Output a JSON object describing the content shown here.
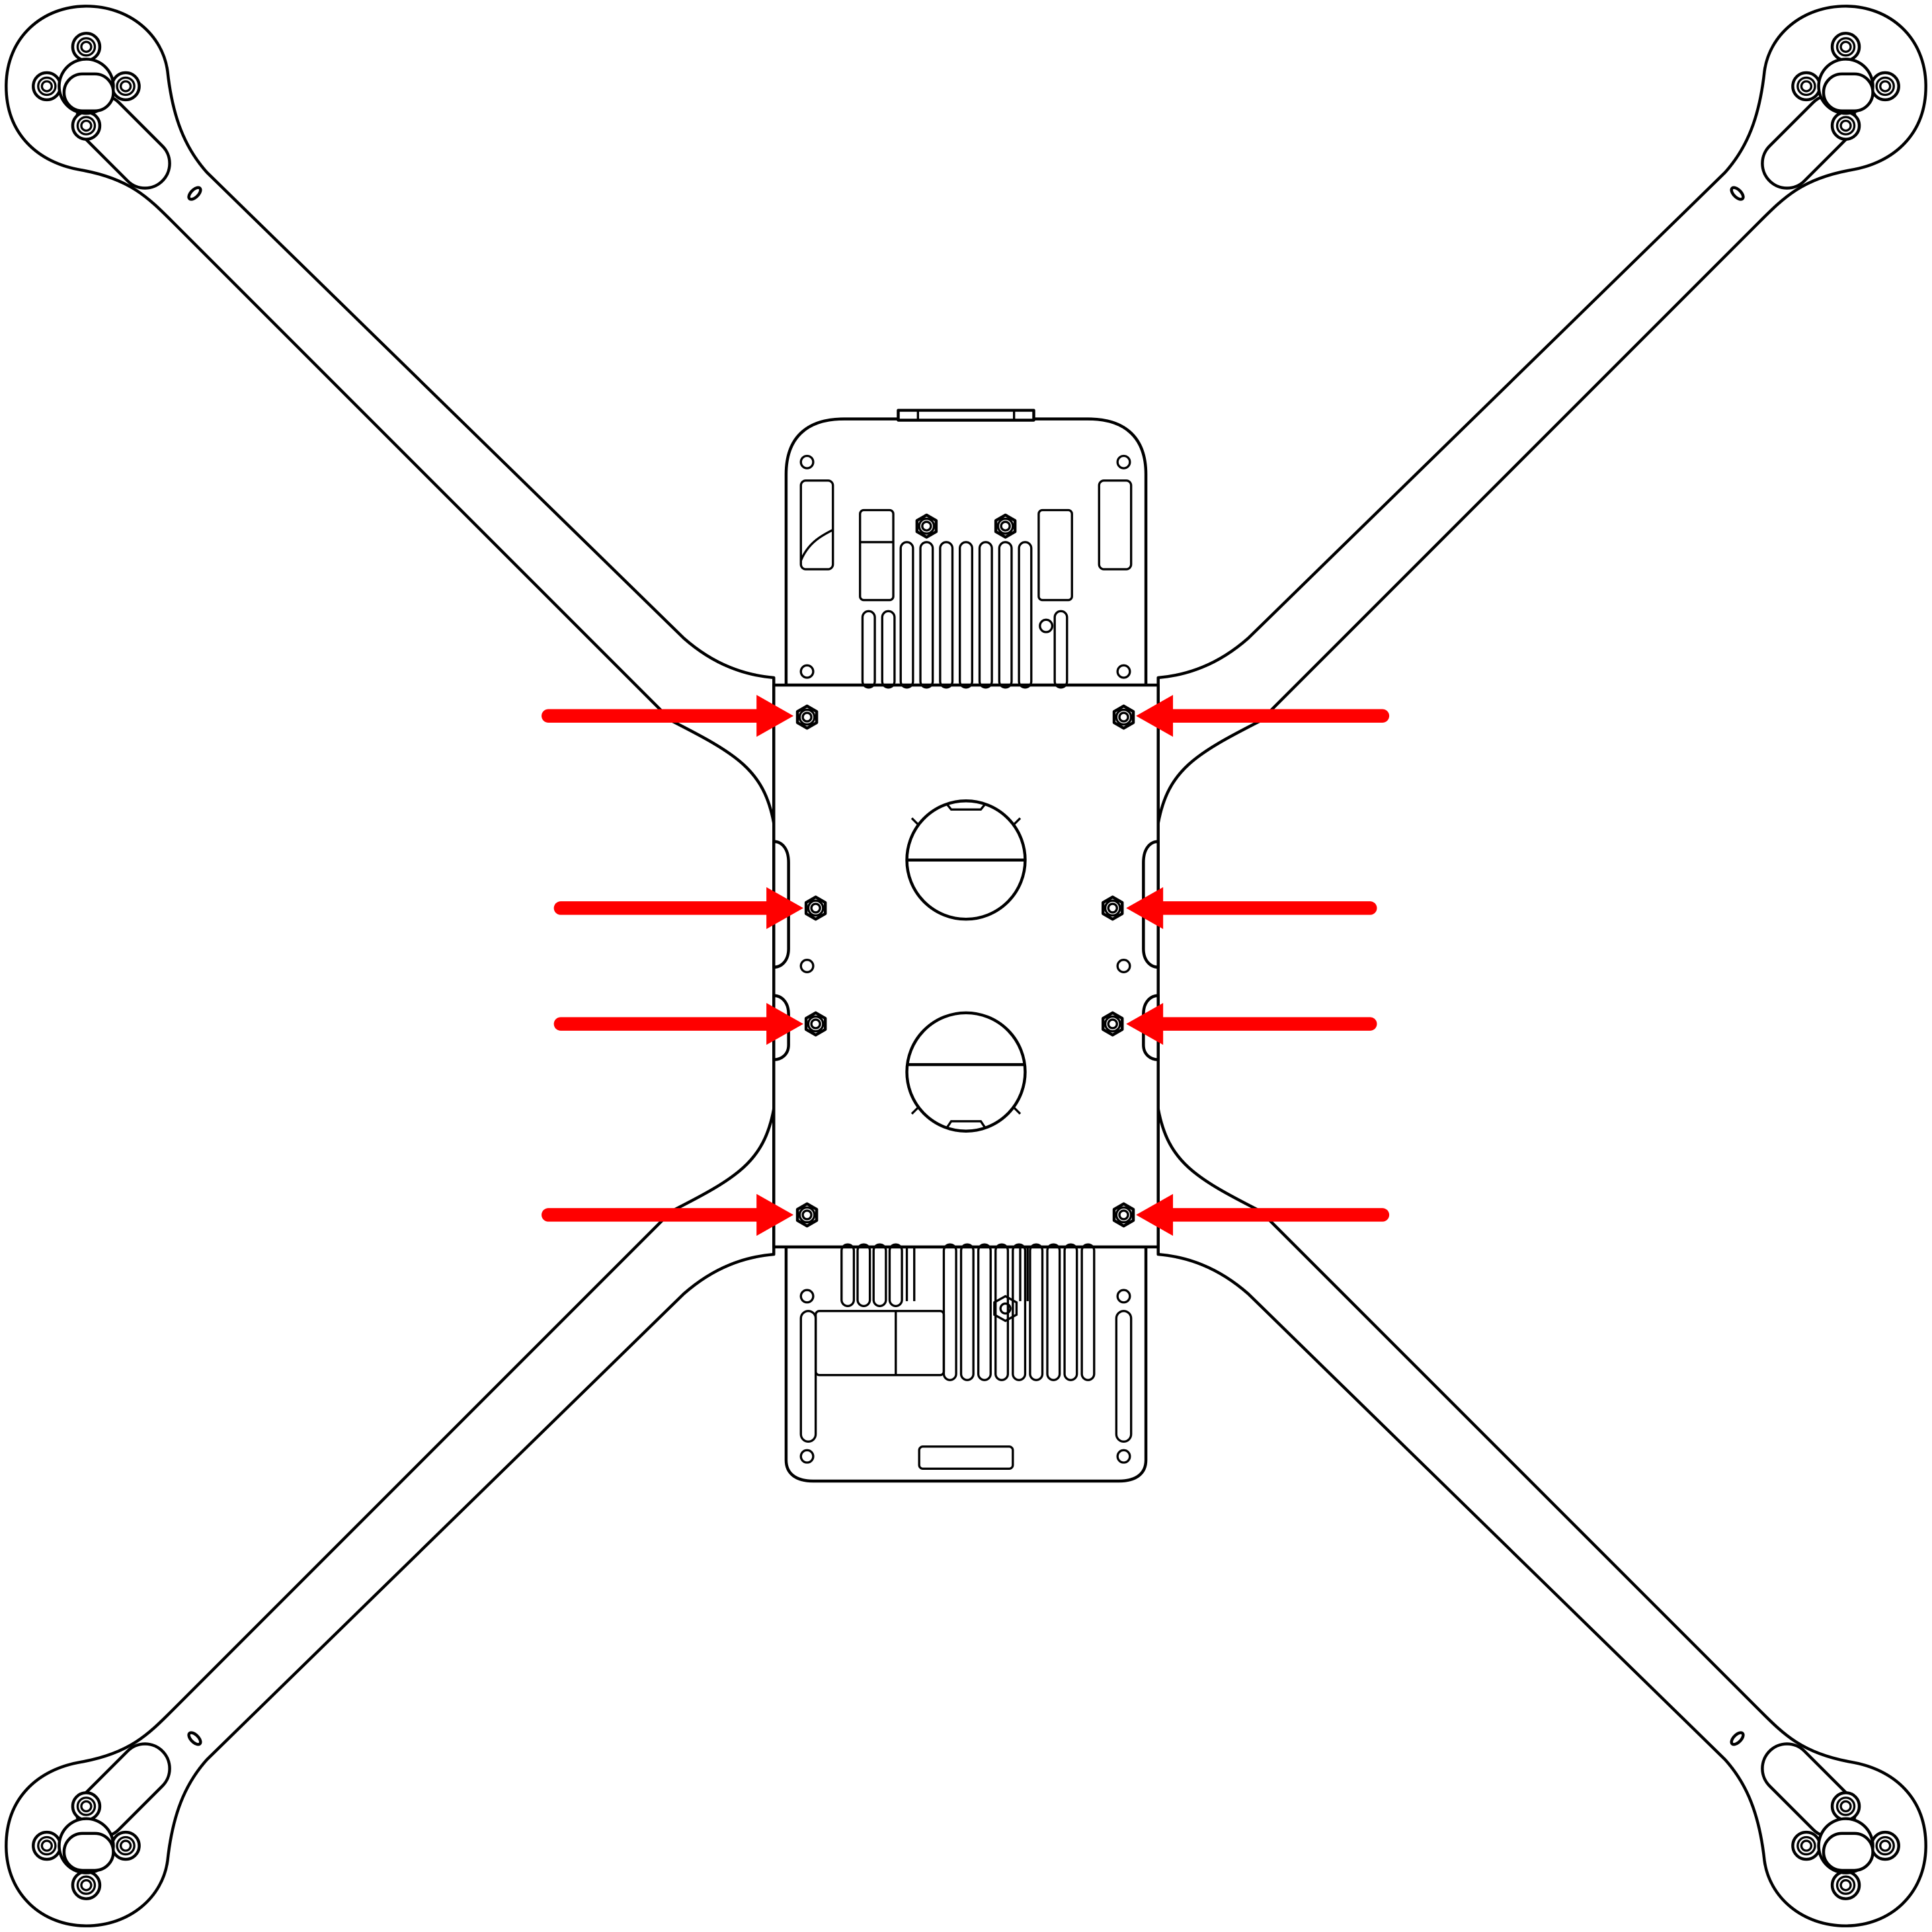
{
  "diagram": {
    "background": "#ffffff",
    "line_color": "#000000",
    "accent_color": "#ff0000",
    "arrow_count": 8,
    "arrow_icon": "red-arrow-icon",
    "screw_icon": "hex-nut-icon",
    "motor_icon": "motor-mount-icon"
  }
}
